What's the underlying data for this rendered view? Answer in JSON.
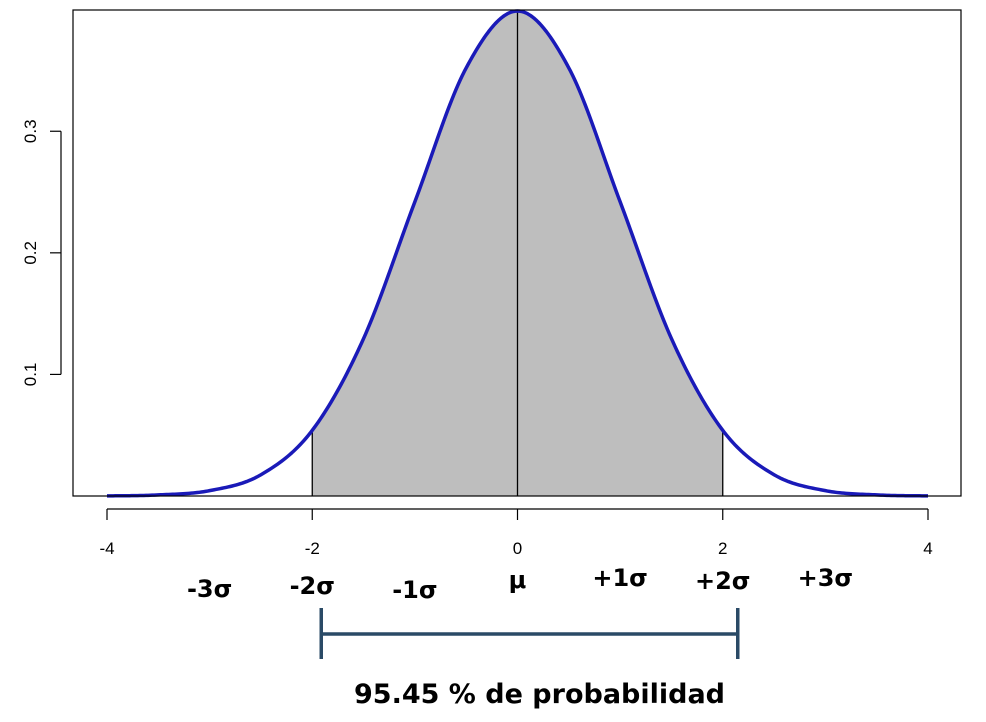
{
  "chart_data": {
    "type": "area",
    "distribution": "standard normal density",
    "x": [
      -4,
      -3.5,
      -3,
      -2.5,
      -2,
      -1.5,
      -1,
      -0.5,
      0,
      0.5,
      1,
      1.5,
      2,
      2.5,
      3,
      3.5,
      4
    ],
    "y": [
      0.0001,
      0.0009,
      0.0044,
      0.0175,
      0.054,
      0.1295,
      0.242,
      0.3521,
      0.3989,
      0.3521,
      0.242,
      0.1295,
      0.054,
      0.0175,
      0.0044,
      0.0009,
      0.0001
    ],
    "shaded_interval": [
      -2,
      2
    ],
    "vertical_lines_x": [
      -2,
      0,
      2
    ],
    "xlim": [
      -4,
      4
    ],
    "ylim": [
      0,
      0.3989
    ],
    "x_ticks": [
      -4,
      -2,
      0,
      2,
      4
    ],
    "x_tick_labels": [
      "-4",
      "-2",
      "0",
      "2",
      "4"
    ],
    "y_ticks": [
      0.1,
      0.2,
      0.3
    ],
    "y_tick_labels": [
      "0.1",
      "0.2",
      "0.3"
    ],
    "sigma_labels": [
      {
        "x": -3,
        "text": "-3σ"
      },
      {
        "x": -2,
        "text": "-2σ"
      },
      {
        "x": -1,
        "text": "-1σ"
      },
      {
        "x": 0,
        "text": "μ"
      },
      {
        "x": 1,
        "text": "+1σ"
      },
      {
        "x": 2,
        "text": "+2σ"
      },
      {
        "x": 3,
        "text": "+3σ"
      }
    ],
    "bracket_interval": [
      -2,
      2
    ],
    "caption": "95.45 % de probabilidad",
    "grid": false,
    "colors": {
      "curve": "#1a1ab8",
      "fill": "#bebebe",
      "bracket": "#2a4a66",
      "axis": "#000000"
    }
  }
}
